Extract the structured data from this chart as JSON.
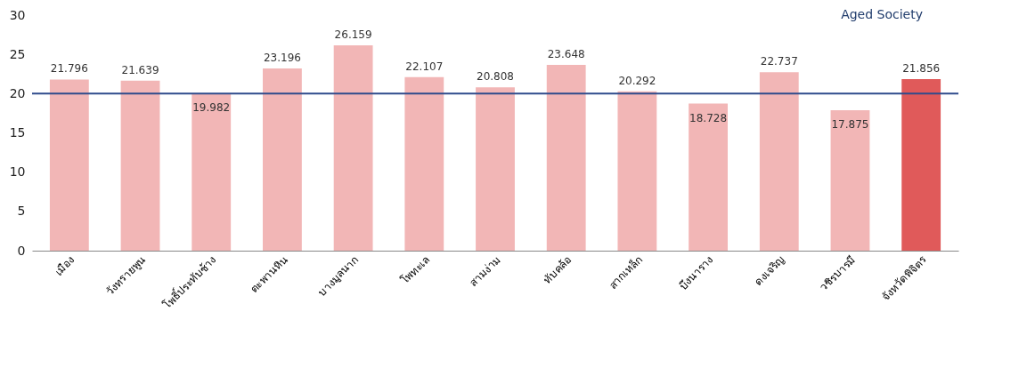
{
  "chart_data": {
    "type": "bar",
    "categories": [
      "เมือง",
      "วังทรายพูน",
      "โพธิ์ประทับช้าง",
      "ตะพานหิน",
      "บางมูลนาก",
      "โพทะเล",
      "สามง่าม",
      "ทับคล้อ",
      "สากเหล็ก",
      "บึงนาราง",
      "ดงเจริญ",
      "วชิรบารมี",
      "จังหวัดพิจิตร"
    ],
    "values": [
      21.796,
      21.639,
      19.982,
      23.196,
      26.159,
      22.107,
      20.808,
      23.648,
      20.292,
      18.728,
      22.737,
      17.875,
      21.856
    ],
    "colors": [
      "#f2b6b6",
      "#f2b6b6",
      "#f2b6b6",
      "#f2b6b6",
      "#f2b6b6",
      "#f2b6b6",
      "#f2b6b6",
      "#f2b6b6",
      "#f2b6b6",
      "#f2b6b6",
      "#f2b6b6",
      "#f2b6b6",
      "#e05a5a"
    ],
    "ylim": [
      0,
      30
    ],
    "yticks": [
      0,
      5,
      10,
      15,
      20,
      25,
      30
    ],
    "data_labels": true,
    "grid": false,
    "ref_lines": [
      {
        "axis": "y",
        "value": 20,
        "label": "Aged Society",
        "color": "#2f4b8c"
      }
    ]
  }
}
